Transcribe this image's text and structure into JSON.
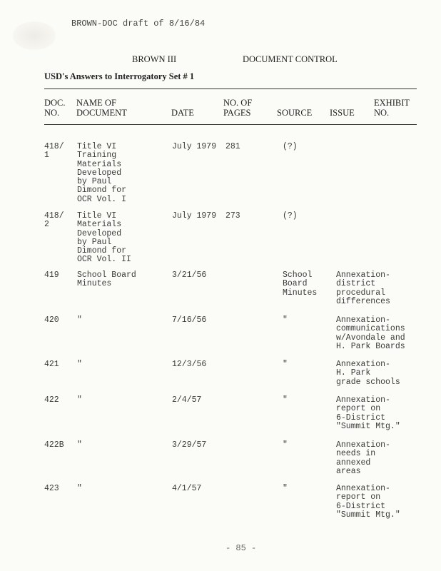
{
  "draft_note": "BROWN-DOC draft of 8/16/84",
  "title_left": "BROWN III",
  "title_right": "DOCUMENT CONTROL",
  "subtitle": "USD's Answers to Interrogatory Set # 1",
  "columns": {
    "doc_no": "DOC.\nNO.",
    "name": "NAME OF\nDOCUMENT",
    "date": "DATE",
    "pages": "NO. OF\nPAGES",
    "source": "SOURCE",
    "issue": "ISSUE",
    "exhibit": "EXHIBIT\nNO."
  },
  "rows": [
    {
      "doc_no": "418/\n1",
      "name": "Title VI\nTraining\nMaterials\nDeveloped\nby Paul\nDimond for\nOCR Vol. I",
      "date": "July 1979",
      "pages": "281",
      "source": "(?)",
      "issue": "",
      "exhibit": ""
    },
    {
      "doc_no": "418/\n2",
      "name": "Title VI\nMaterials\nDeveloped\nby Paul\nDimond for\nOCR Vol. II",
      "date": "July 1979",
      "pages": "273",
      "source": "(?)",
      "issue": "",
      "exhibit": ""
    },
    {
      "doc_no": "419",
      "name": "School Board\nMinutes",
      "date": "3/21/56",
      "pages": "",
      "source": "School\nBoard\nMinutes",
      "issue": "Annexation-\ndistrict\nprocedural\ndifferences",
      "exhibit": ""
    },
    {
      "doc_no": "420",
      "name": "\"",
      "date": "7/16/56",
      "pages": "",
      "source": "\"",
      "issue": "Annexation-\ncommunications\nw/Avondale and\nH. Park Boards",
      "exhibit": ""
    },
    {
      "doc_no": "421",
      "name": "\"",
      "date": "12/3/56",
      "pages": "",
      "source": "\"",
      "issue": "Annexation-\nH. Park\ngrade schools",
      "exhibit": ""
    },
    {
      "doc_no": "422",
      "name": "\"",
      "date": "2/4/57",
      "pages": "",
      "source": "\"",
      "issue": "Annexation-\nreport on\n6-District\n\"Summit Mtg.\"",
      "exhibit": ""
    },
    {
      "doc_no": "422B",
      "name": "\"",
      "date": "3/29/57",
      "pages": "",
      "source": "\"",
      "issue": "Annexation-\nneeds in\nannexed\nareas",
      "exhibit": ""
    },
    {
      "doc_no": "423",
      "name": "\"",
      "date": "4/1/57",
      "pages": "",
      "source": "\"",
      "issue": "Annexation-\nreport on\n6-District\n\"Summit Mtg.\"",
      "exhibit": ""
    }
  ],
  "page_number": "- 85 -"
}
